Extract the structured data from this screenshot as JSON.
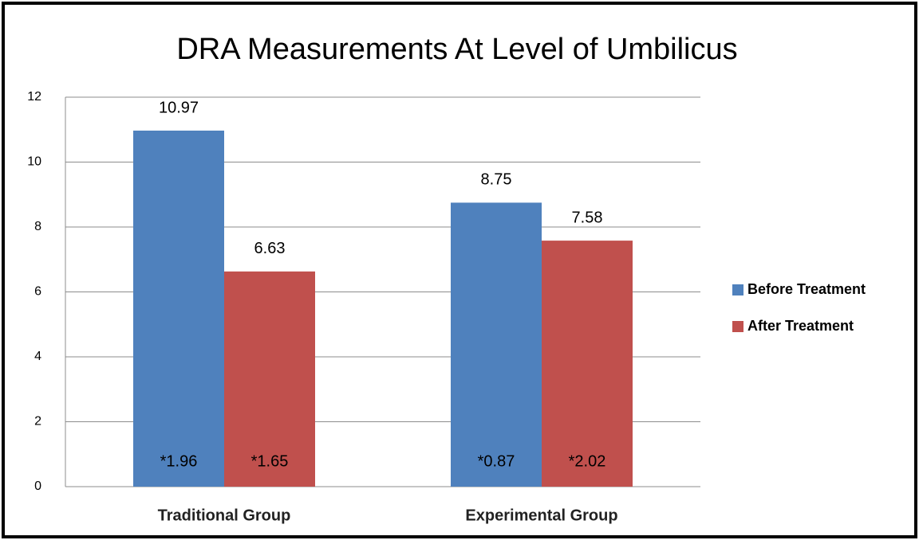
{
  "chart_data": {
    "type": "bar",
    "title": "DRA Measurements At Level of Umbilicus",
    "categories": [
      "Traditional Group",
      "Experimental Group"
    ],
    "series": [
      {
        "name": "Before Treatment",
        "color": "#4f81bd",
        "values": [
          10.97,
          8.75
        ],
        "annotations": [
          "*1.96",
          "*0.87"
        ]
      },
      {
        "name": "After Treatment",
        "color": "#c0504d",
        "values": [
          6.63,
          7.58
        ],
        "annotations": [
          "*1.65",
          "*2.02"
        ]
      }
    ],
    "ylim": [
      0,
      12
    ],
    "yticks": [
      0,
      2,
      4,
      6,
      8,
      10,
      12
    ],
    "grid": true,
    "legend": "right"
  }
}
